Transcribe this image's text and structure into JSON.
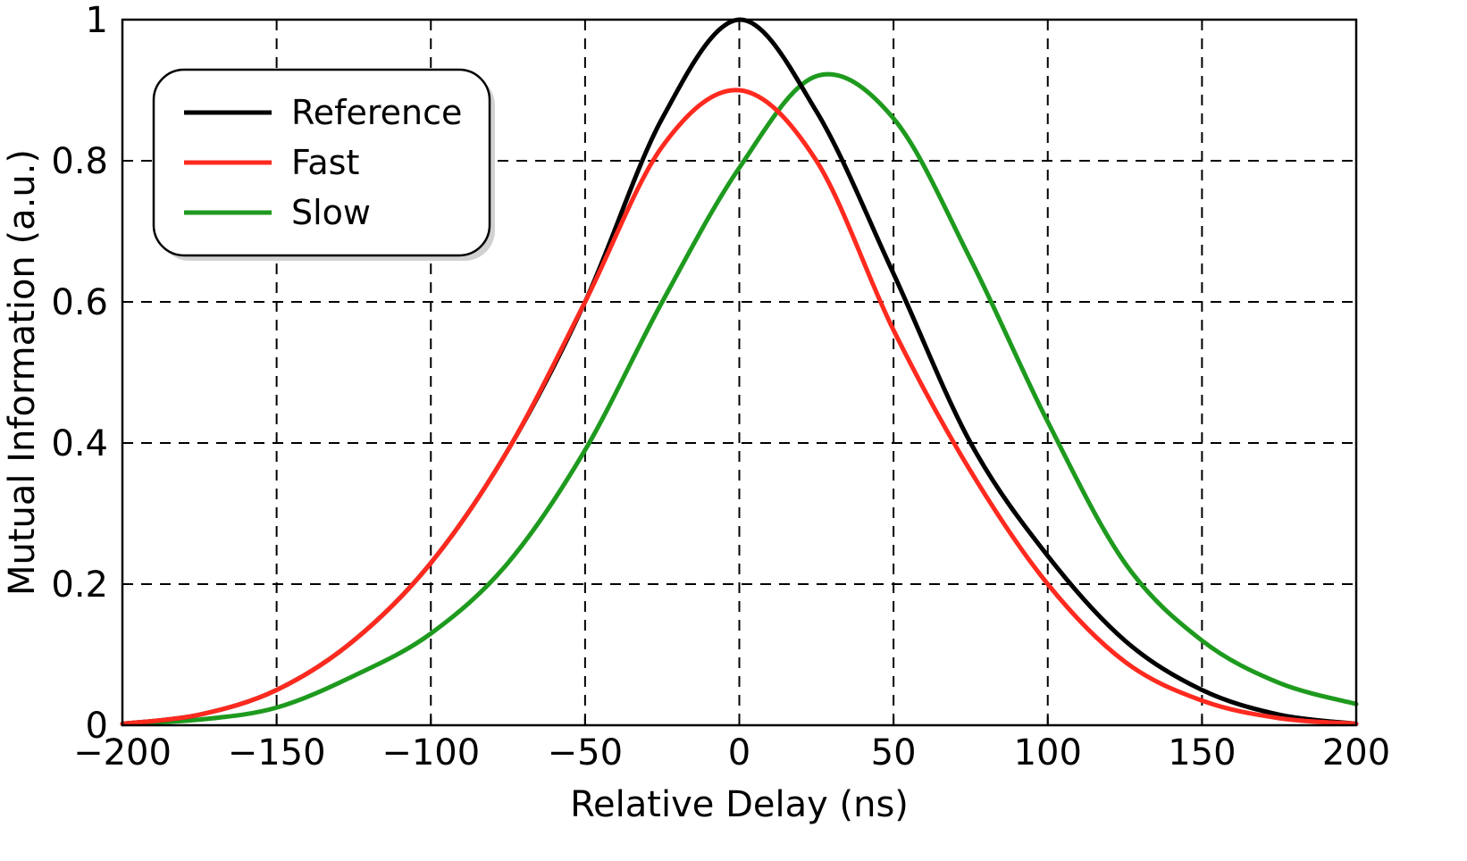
{
  "chart_data": {
    "type": "line",
    "title": "",
    "xlabel": "Relative Delay (ns)",
    "ylabel": "Mutual Information (a.u.)",
    "xlim": [
      -200,
      200
    ],
    "ylim": [
      0,
      1
    ],
    "grid": true,
    "legend_position": "top-left",
    "xticks": [
      -200,
      -150,
      -100,
      -50,
      0,
      50,
      100,
      150,
      200
    ],
    "xtick_labels": [
      "−200",
      "−150",
      "−100",
      "−50",
      "0",
      "50",
      "100",
      "150",
      "200"
    ],
    "yticks": [
      0,
      0.2,
      0.4,
      0.6,
      0.8,
      1
    ],
    "ytick_labels": [
      "0",
      "0.2",
      "0.4",
      "0.6",
      "0.8",
      "1"
    ],
    "x": [
      -200,
      -175,
      -150,
      -125,
      -100,
      -75,
      -50,
      -25,
      0,
      25,
      50,
      75,
      100,
      125,
      150,
      175,
      200
    ],
    "series": [
      {
        "name": "Reference",
        "color": "#000000",
        "values": [
          0.002,
          0.015,
          0.05,
          0.12,
          0.23,
          0.39,
          0.6,
          0.86,
          1.0,
          0.87,
          0.64,
          0.4,
          0.24,
          0.12,
          0.05,
          0.015,
          0.002
        ]
      },
      {
        "name": "Fast",
        "color": "#ff2a1f",
        "values": [
          0.002,
          0.015,
          0.05,
          0.12,
          0.23,
          0.39,
          0.6,
          0.82,
          0.9,
          0.8,
          0.56,
          0.36,
          0.2,
          0.09,
          0.035,
          0.01,
          0.002
        ]
      },
      {
        "name": "Slow",
        "color": "#1e9a1e",
        "values": [
          0.002,
          0.008,
          0.025,
          0.07,
          0.13,
          0.23,
          0.39,
          0.6,
          0.79,
          0.92,
          0.86,
          0.66,
          0.43,
          0.23,
          0.12,
          0.06,
          0.03
        ]
      }
    ]
  }
}
